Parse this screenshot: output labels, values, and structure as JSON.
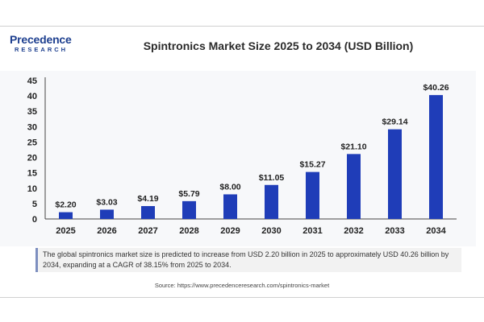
{
  "brand": {
    "name_line1": "Precedence",
    "name_line2": "RESEARCH"
  },
  "title": "Spintronics Market Size 2025 to 2034 (USD Billion)",
  "caption": "The global spintronics market size is predicted to increase from USD 2.20 billion in 2025 to approximately USD 40.26 billion by 2034, expanding at a CAGR of 38.15% from 2025 to 2034.",
  "source": "Source: https://www.precedenceresearch.com/spintronics-market",
  "colors": {
    "bar": "#1f3db8",
    "brand": "#1d3f8f"
  },
  "chart_data": {
    "type": "bar",
    "title": "Spintronics Market Size 2025 to 2034 (USD Billion)",
    "categories": [
      "2025",
      "2026",
      "2027",
      "2028",
      "2029",
      "2030",
      "2031",
      "2032",
      "2033",
      "2034"
    ],
    "values": [
      2.2,
      3.03,
      4.19,
      5.79,
      8.0,
      11.05,
      15.27,
      21.1,
      29.14,
      40.26
    ],
    "labels": [
      "$2.20",
      "$3.03",
      "$4.19",
      "$5.79",
      "$8.00",
      "$11.05",
      "$15.27",
      "$21.10",
      "$29.14",
      "$40.26"
    ],
    "yticks": [
      "0",
      "5",
      "10",
      "15",
      "20",
      "25",
      "30",
      "35",
      "40",
      "45"
    ],
    "ylim": [
      0,
      45
    ],
    "grid": false
  }
}
